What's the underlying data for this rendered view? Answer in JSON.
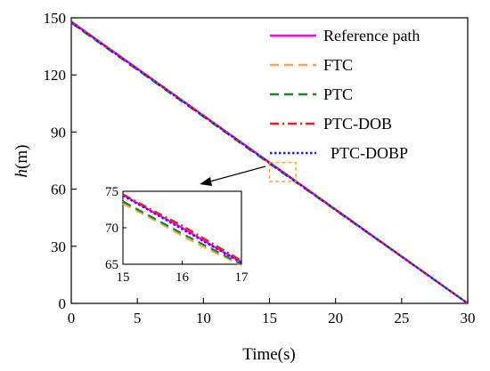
{
  "chart_data": {
    "type": "line",
    "xlabel": "Time(s)",
    "ylabel_italic": "h",
    "ylabel_unit": "(m)",
    "xlim": [
      0,
      30
    ],
    "ylim": [
      0,
      150
    ],
    "xticks": [
      "0",
      "5",
      "10",
      "15",
      "20",
      "25",
      "30"
    ],
    "yticks": [
      "0",
      "30",
      "60",
      "90",
      "120",
      "150"
    ],
    "grid": false,
    "legend_position": "top-right",
    "series": [
      {
        "name": "Reference path",
        "color": "#ff00ff",
        "style": "solid",
        "x": [
          0,
          15,
          30
        ],
        "y": [
          148,
          74,
          0
        ]
      },
      {
        "name": "FTC",
        "color": "#f4a460",
        "style": "dashed",
        "x": [
          0,
          15,
          30
        ],
        "y": [
          147.5,
          73.6,
          0
        ]
      },
      {
        "name": "PTC",
        "color": "#1a8a1a",
        "style": "dashed",
        "x": [
          0,
          15,
          30
        ],
        "y": [
          147.3,
          73.4,
          0
        ]
      },
      {
        "name": "PTC-DOB",
        "color": "#ff1a1a",
        "style": "dashdot",
        "x": [
          0,
          15,
          30
        ],
        "y": [
          147.8,
          73.9,
          0
        ]
      },
      {
        "name": "PTC-DOBP",
        "color": "#1a1aff",
        "style": "dotted",
        "x": [
          0,
          15,
          30
        ],
        "y": [
          147.6,
          73.7,
          0
        ]
      }
    ],
    "inset": {
      "xlim": [
        15,
        17
      ],
      "ylim": [
        65,
        75
      ],
      "xticks": [
        "15",
        "16",
        "17"
      ],
      "yticks": [
        "65",
        "70",
        "75"
      ],
      "zoom_box_x": [
        15,
        17
      ],
      "zoom_box_y": [
        64,
        74
      ],
      "series": [
        {
          "name": "Reference path",
          "x": [
            15,
            15.5,
            16,
            16.5,
            17
          ],
          "y": [
            74.5,
            72.2,
            70.0,
            67.6,
            65.3
          ]
        },
        {
          "name": "FTC",
          "x": [
            15,
            15.5,
            16,
            16.5,
            17
          ],
          "y": [
            73.3,
            71.2,
            68.9,
            66.8,
            64.9
          ]
        },
        {
          "name": "PTC",
          "x": [
            15,
            15.5,
            16,
            16.5,
            17
          ],
          "y": [
            73.6,
            71.4,
            69.2,
            67.1,
            65.0
          ]
        },
        {
          "name": "PTC-DOB",
          "x": [
            15,
            15.5,
            16,
            16.5,
            17
          ],
          "y": [
            74.6,
            72.4,
            70.3,
            67.9,
            65.5
          ]
        },
        {
          "name": "PTC-DOBP",
          "x": [
            15,
            15.5,
            16,
            16.5,
            17
          ],
          "y": [
            74.4,
            72.1,
            69.8,
            67.5,
            65.2
          ]
        }
      ]
    }
  }
}
